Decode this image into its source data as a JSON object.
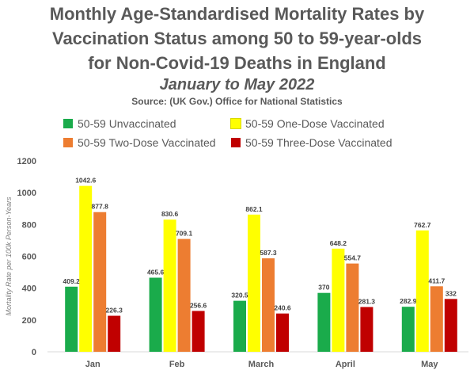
{
  "title_lines": [
    "Monthly Age-Standardised Mortality Rates by",
    "Vaccination Status among 50 to 59-year-olds",
    "for Non-Covid-19 Deaths in England"
  ],
  "subtitle": "January to May 2022",
  "source": "Source: (UK Gov.) Office for National Statistics",
  "legend": [
    {
      "label": "50-59 Unvaccinated",
      "color": "#1aab4b"
    },
    {
      "label": "50-59 One-Dose Vaccinated",
      "color": "#ffff00"
    },
    {
      "label": "50-59 Two-Dose Vaccinated",
      "color": "#ed7d31"
    },
    {
      "label": "50-59 Three-Dose Vaccinated",
      "color": "#c00000"
    }
  ],
  "chart_data": {
    "type": "bar",
    "title": "Monthly Age-Standardised Mortality Rates by Vaccination Status among 50 to 59-year-olds for Non-Covid-19 Deaths in England",
    "subtitle": "January to May 2022",
    "ylabel": "Mortality Rate per 100k Person-Years",
    "xlabel": "",
    "ylim": [
      0,
      1200
    ],
    "yticks": [
      0,
      200,
      400,
      600,
      800,
      1000,
      1200
    ],
    "grid": false,
    "legend_position": "top",
    "categories": [
      "Jan",
      "Feb",
      "March",
      "April",
      "May"
    ],
    "series": [
      {
        "name": "50-59 Unvaccinated",
        "color": "#1aab4b",
        "values": [
          409.2,
          465.6,
          320.5,
          370,
          282.9
        ],
        "labels": [
          "409.2",
          "465.6",
          "320.5",
          "370",
          "282.9"
        ]
      },
      {
        "name": "50-59 One-Dose Vaccinated",
        "color": "#ffff00",
        "values": [
          1042.6,
          830.6,
          862.1,
          648.2,
          762.7
        ],
        "labels": [
          "1042.6",
          "830.6",
          "862.1",
          "648.2",
          "762.7"
        ]
      },
      {
        "name": "50-59 Two-Dose Vaccinated",
        "color": "#ed7d31",
        "values": [
          877.8,
          709.1,
          587.3,
          554.7,
          411.7
        ],
        "labels": [
          "877.8",
          "709.1",
          "587.3",
          "554.7",
          "411.7"
        ]
      },
      {
        "name": "50-59 Three-Dose Vaccinated",
        "color": "#c00000",
        "values": [
          226.3,
          256.6,
          240.6,
          281.3,
          332
        ],
        "labels": [
          "226.3",
          "256.6",
          "240.6",
          "281.3",
          "332"
        ]
      }
    ]
  }
}
